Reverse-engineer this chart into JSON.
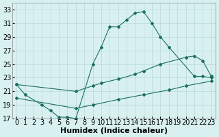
{
  "xlabel": "Humidex (Indice chaleur)",
  "bg_color": "#d8f0f0",
  "grid_color": "#b8d8d8",
  "line_color": "#1a7060",
  "xlim": [
    -0.5,
    23.5
  ],
  "ylim": [
    17,
    34
  ],
  "xticks": [
    0,
    1,
    2,
    3,
    4,
    5,
    6,
    7,
    8,
    9,
    10,
    11,
    12,
    13,
    14,
    15,
    16,
    17,
    18,
    19,
    20,
    21,
    22,
    23
  ],
  "yticks": [
    17,
    19,
    21,
    23,
    25,
    27,
    29,
    31,
    33
  ],
  "font_size": 7,
  "line1_x": [
    0,
    1,
    3,
    4,
    5,
    6,
    7,
    9,
    10,
    11,
    12,
    13,
    14,
    15,
    16,
    17,
    18,
    21,
    22,
    23
  ],
  "line1_y": [
    22.0,
    20.5,
    19.0,
    18.2,
    17.2,
    17.2,
    17.0,
    25.0,
    27.5,
    30.5,
    30.5,
    31.5,
    32.5,
    32.7,
    31.0,
    29.0,
    27.5,
    23.2,
    23.2,
    23.0
  ],
  "line2_x": [
    0,
    7,
    9,
    10,
    12,
    14,
    15,
    17,
    20,
    21,
    22,
    23
  ],
  "line2_y": [
    22.0,
    21.0,
    21.8,
    22.2,
    22.8,
    23.5,
    24.0,
    25.0,
    26.0,
    26.2,
    25.5,
    23.2
  ],
  "line3_x": [
    0,
    7,
    9,
    12,
    15,
    18,
    20,
    23
  ],
  "line3_y": [
    20.0,
    18.5,
    19.0,
    19.8,
    20.5,
    21.2,
    21.8,
    22.5
  ]
}
